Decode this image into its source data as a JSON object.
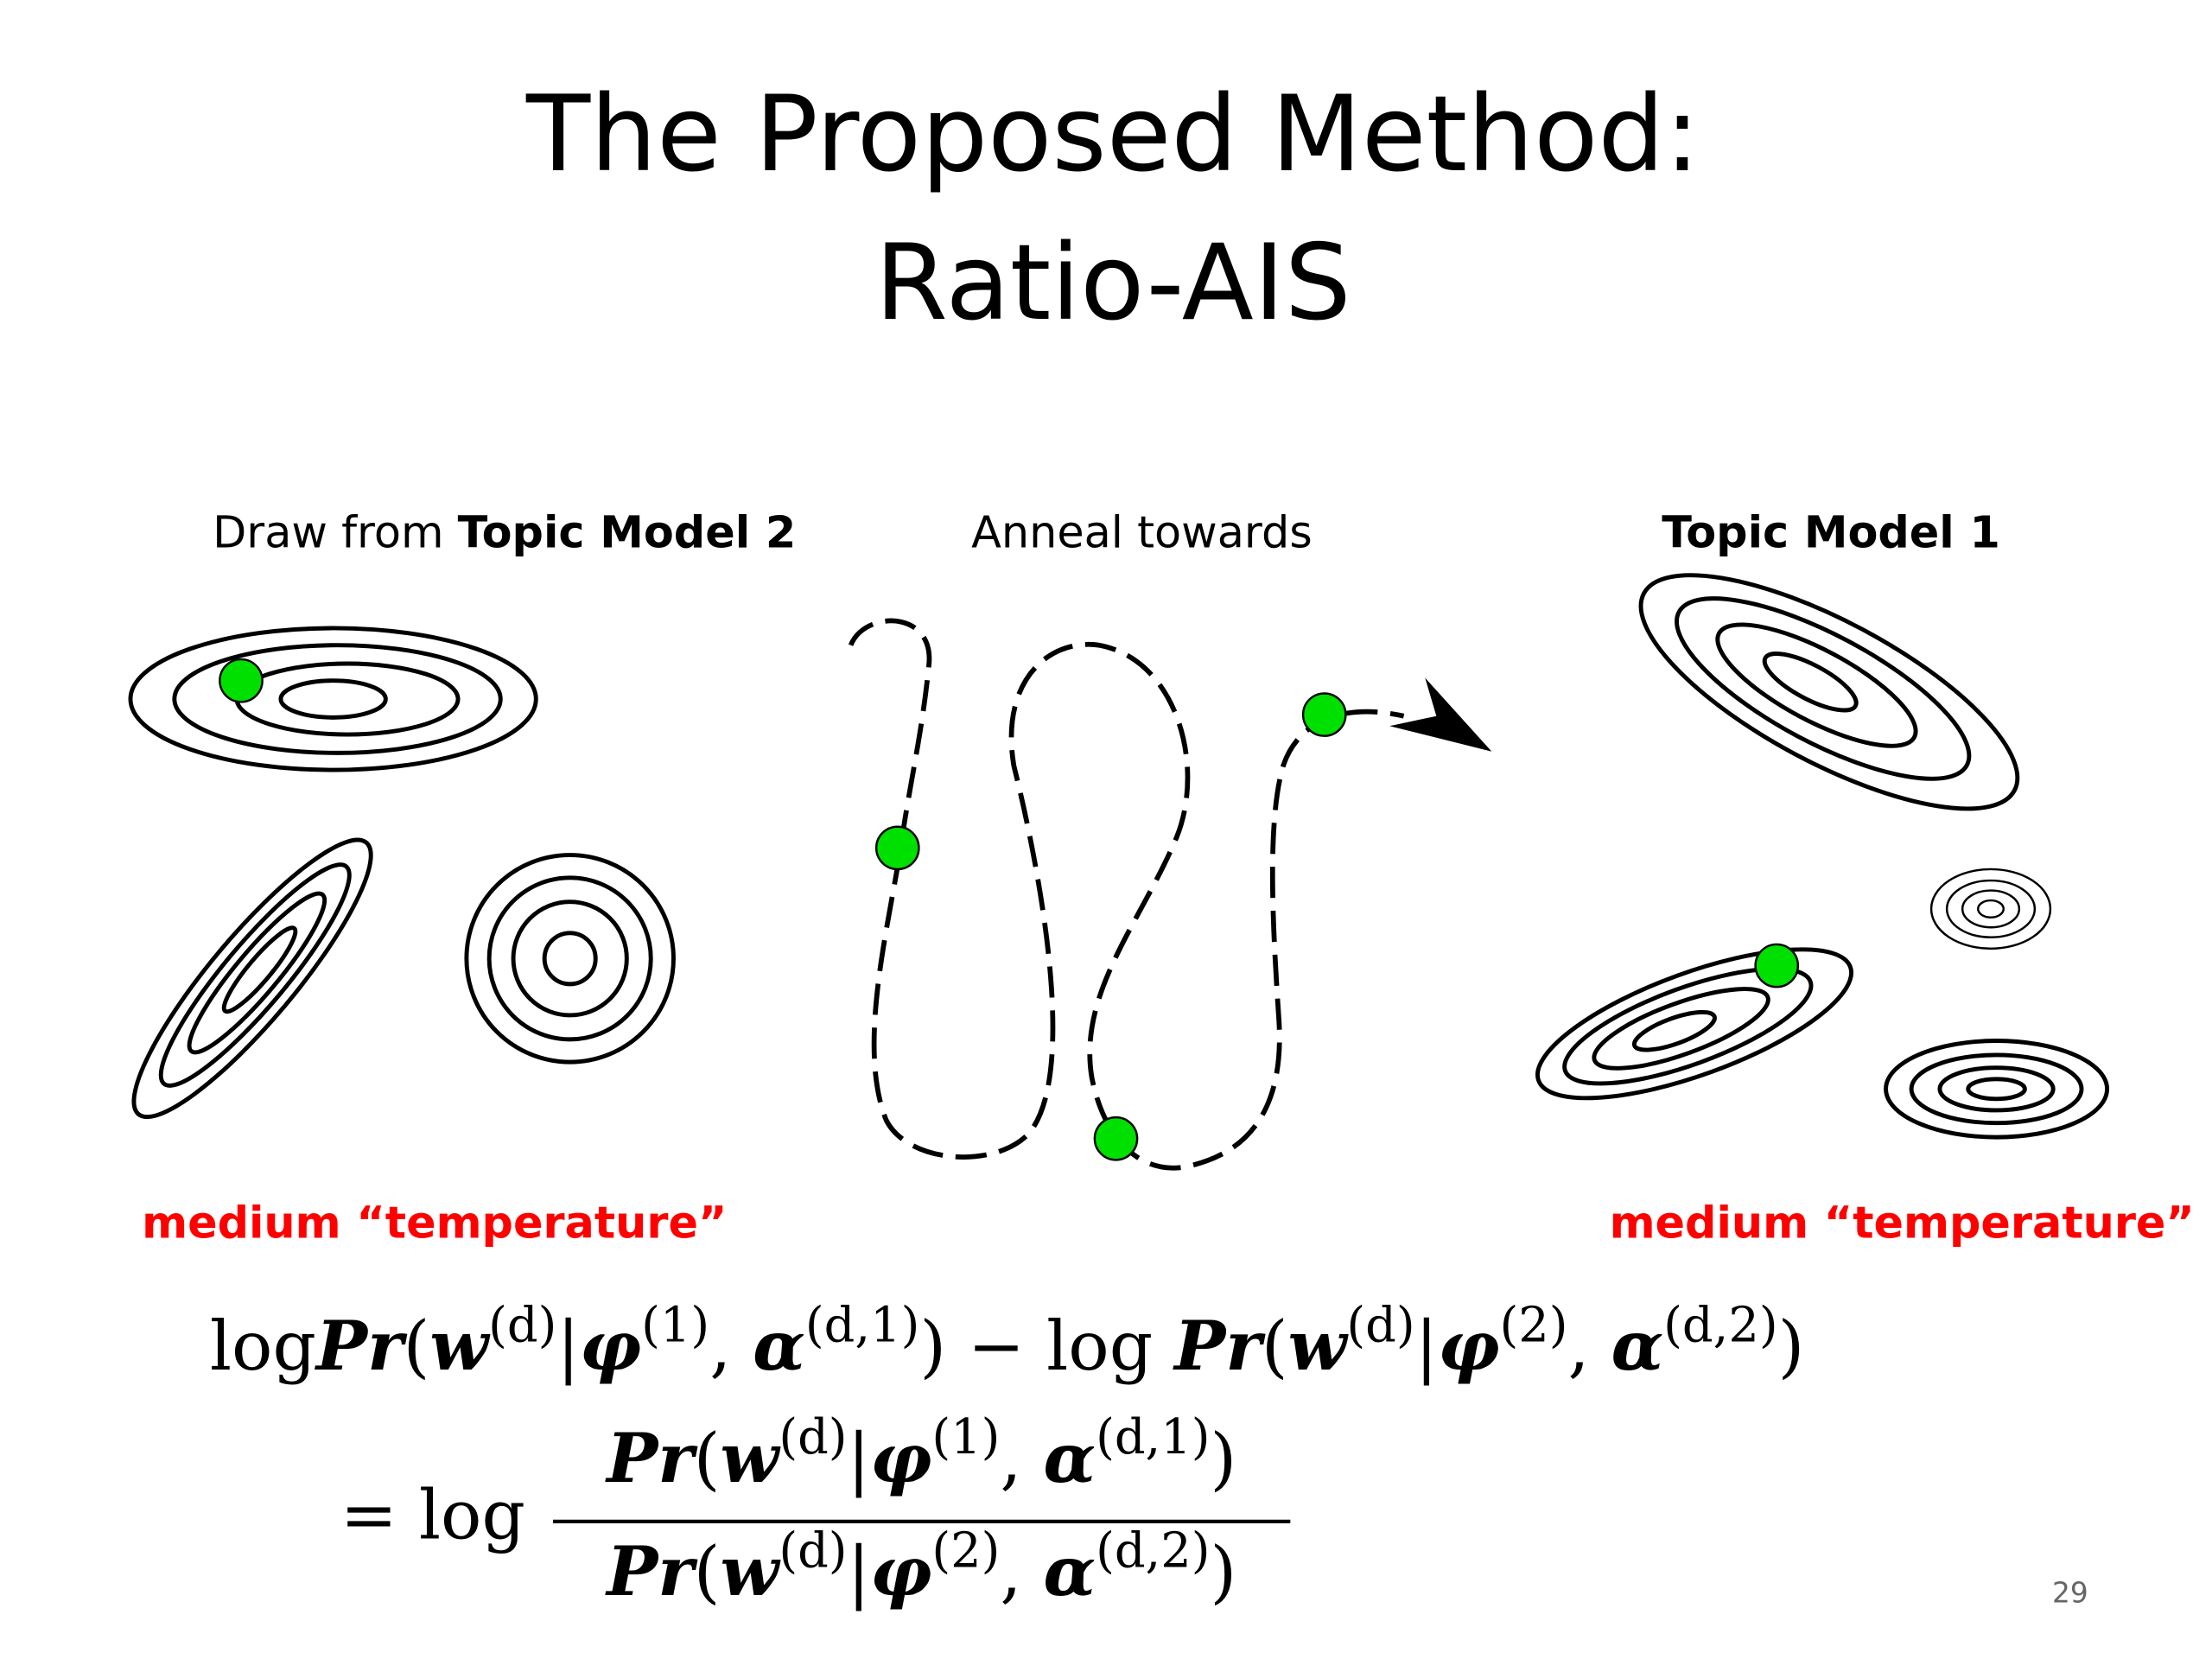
{
  "header": {
    "title_lines": [
      "The Proposed Method:",
      "Ratio-AIS"
    ]
  },
  "captions": {
    "left": [
      {
        "text": "Draw from "
      },
      {
        "text": "Topic Model 2",
        "bold": true
      }
    ],
    "middle": [
      {
        "text": "Anneal towards"
      }
    ],
    "right": [
      {
        "text": "Topic Model 1",
        "bold": true
      }
    ]
  },
  "notes": {
    "left": "medium “temperature”",
    "right": "medium “temperature”"
  },
  "formula": {
    "line1": [
      {
        "text": "log"
      },
      {
        "text": "Pr",
        "italic": true
      },
      {
        "text": "("
      },
      {
        "text": "w",
        "italic": true
      },
      {
        "sup": "(d)"
      },
      {
        "text": "|"
      },
      {
        "text": "φ",
        "italic": true
      },
      {
        "sup": "(1)"
      },
      {
        "text": ", "
      },
      {
        "text": "α",
        "italic": true
      },
      {
        "sup": "(d,1)"
      },
      {
        "text": ") − log "
      },
      {
        "text": "Pr",
        "italic": true
      },
      {
        "text": "("
      },
      {
        "text": "w",
        "italic": true
      },
      {
        "sup": "(d)"
      },
      {
        "text": "|"
      },
      {
        "text": "φ",
        "italic": true
      },
      {
        "sup": "(2)"
      },
      {
        "text": ", "
      },
      {
        "text": "α",
        "italic": true
      },
      {
        "sup": "(d,2)"
      },
      {
        "text": ")"
      }
    ],
    "equals": "= log",
    "numerator": [
      {
        "text": "Pr",
        "italic": true
      },
      {
        "text": "("
      },
      {
        "text": "w",
        "italic": true
      },
      {
        "sup": "(d)"
      },
      {
        "text": "|"
      },
      {
        "text": "φ",
        "italic": true
      },
      {
        "sup": "(1)"
      },
      {
        "text": ", "
      },
      {
        "text": "α",
        "italic": true
      },
      {
        "sup": "(d,1)"
      },
      {
        "text": ")"
      }
    ],
    "denominator": [
      {
        "text": "Pr",
        "italic": true
      },
      {
        "text": "("
      },
      {
        "text": "w",
        "italic": true
      },
      {
        "sup": "(d)"
      },
      {
        "text": "|"
      },
      {
        "text": "φ",
        "italic": true
      },
      {
        "sup": "(2)"
      },
      {
        "text": ", "
      },
      {
        "text": "α",
        "italic": true
      },
      {
        "sup": "(d,2)"
      },
      {
        "text": ")"
      }
    ]
  },
  "page_number": "29"
}
